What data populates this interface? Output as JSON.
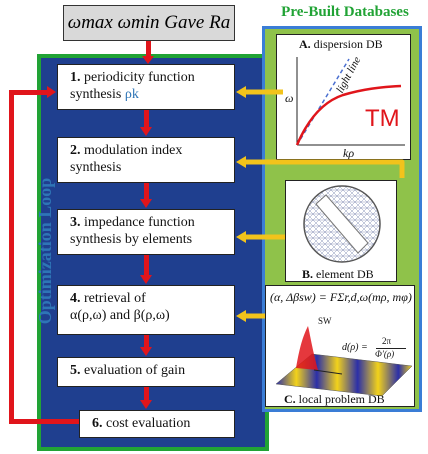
{
  "inputs": {
    "label": "ωmax  ωmin  Gave  Ra"
  },
  "loop": {
    "label": "Optimization Loop"
  },
  "steps": [
    {
      "num": "1.",
      "line1": "periodicity function",
      "line2": "synthesis ",
      "sym": "ρk"
    },
    {
      "num": "2.",
      "line1": "modulation index",
      "line2": "synthesis"
    },
    {
      "num": "3.",
      "line1": "impedance function",
      "line2": "synthesis by elements"
    },
    {
      "num": "4.",
      "line1": "retrieval of",
      "line2": "α(ρ,ω) and β(ρ,ω)"
    },
    {
      "num": "5.",
      "line1": "evaluation of gain"
    },
    {
      "num": "6.",
      "line1": "cost evaluation"
    }
  ],
  "databases": {
    "title": "Pre-Built Databases",
    "dispersion": {
      "letter": "A.",
      "label": "dispersion DB",
      "curve_label": "light line",
      "y_axis": "ω",
      "x_axis": "kρ",
      "mode": "TM"
    },
    "element": {
      "letter": "B.",
      "label": "element DB"
    },
    "local": {
      "letter": "C.",
      "label": "local problem DB",
      "equation": "(α, Δβsw) = FΣr,d,ω(mρ, mφ)",
      "sw": "SW",
      "d_label": "d(ρ) =",
      "frac_num": "2π",
      "frac_den": "Φ′(ρ)"
    }
  },
  "colors": {
    "loop_panel": "#1f3f8f",
    "loop_border": "#21a335",
    "db_panel": "#8fc24a",
    "db_border": "#3a7dd6",
    "arrow_red": "#e0151b",
    "arrow_yellow": "#f2c31b",
    "loop_text": "#2e75b6"
  }
}
